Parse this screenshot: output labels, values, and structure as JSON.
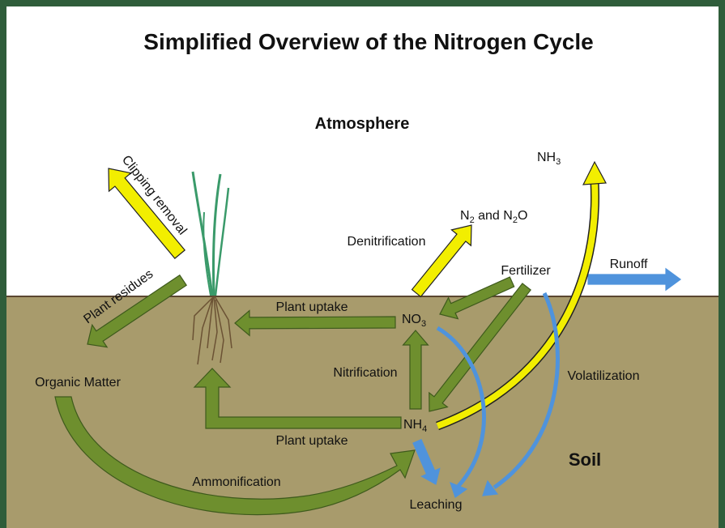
{
  "title": "Simplified Overview of the Nitrogen Cycle",
  "labels": {
    "atmosphere": "Atmosphere",
    "soil": "Soil",
    "clipping_removal": "Clipping removal",
    "plant_residues": "Plant residues",
    "organic_matter": "Organic Matter",
    "ammonification": "Ammonification",
    "plant_uptake_top": "Plant uptake",
    "plant_uptake_bottom": "Plant uptake",
    "nitrification": "Nitrification",
    "denitrification": "Denitrification",
    "fertilizer": "Fertilizer",
    "runoff": "Runoff",
    "volatilization": "Volatilization",
    "leaching": "Leaching"
  },
  "compounds": {
    "no3": {
      "base": "NO",
      "sub": "3"
    },
    "nh4": {
      "base": "NH",
      "sub": "4"
    },
    "nh3": {
      "base": "NH",
      "sub": "3"
    },
    "n2_n2o": {
      "a": "N",
      "a_sub": "2",
      "mid": " and N",
      "b_sub": "2",
      "end": "O"
    }
  }
}
